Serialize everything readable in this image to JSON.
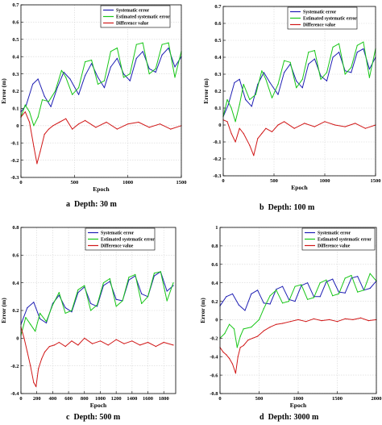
{
  "chart_data": [
    {
      "type": "line",
      "caption_letter": "a",
      "caption_text": "Depth: 30 m",
      "xlabel": "Epoch",
      "ylabel": "Error (m)",
      "xlim": [
        0,
        1500
      ],
      "ylim": [
        -0.3,
        0.7
      ],
      "xticks": [
        0,
        500,
        1000,
        1500
      ],
      "yticks": [
        -0.3,
        -0.2,
        -0.1,
        0,
        0.1,
        0.2,
        0.3,
        0.4,
        0.5,
        0.6,
        0.7
      ],
      "grid": true,
      "legend_position": "top-center",
      "series": [
        {
          "name": "Systematic error",
          "color": "#1f1fb4",
          "x": [
            0,
            50,
            110,
            160,
            220,
            280,
            340,
            400,
            460,
            540,
            600,
            660,
            720,
            780,
            840,
            900,
            960,
            1020,
            1080,
            1140,
            1200,
            1260,
            1320,
            1380,
            1440,
            1500
          ],
          "values": [
            0.08,
            0.12,
            0.24,
            0.27,
            0.17,
            0.11,
            0.22,
            0.31,
            0.27,
            0.18,
            0.29,
            0.36,
            0.28,
            0.22,
            0.34,
            0.39,
            0.3,
            0.26,
            0.39,
            0.43,
            0.33,
            0.31,
            0.41,
            0.45,
            0.34,
            0.4
          ]
        },
        {
          "name": "Estimated systematic error",
          "color": "#18c618",
          "x": [
            0,
            40,
            80,
            120,
            160,
            200,
            260,
            320,
            380,
            420,
            480,
            540,
            600,
            660,
            720,
            780,
            840,
            900,
            960,
            1020,
            1080,
            1140,
            1200,
            1260,
            1320,
            1380,
            1440,
            1500
          ],
          "values": [
            0.05,
            0.12,
            0.08,
            0.0,
            0.05,
            0.15,
            0.14,
            0.2,
            0.32,
            0.28,
            0.18,
            0.22,
            0.37,
            0.38,
            0.24,
            0.26,
            0.43,
            0.45,
            0.28,
            0.3,
            0.47,
            0.48,
            0.3,
            0.33,
            0.47,
            0.48,
            0.28,
            0.43
          ]
        },
        {
          "name": "Difference value",
          "color": "#d11818",
          "x": [
            0,
            40,
            80,
            120,
            150,
            180,
            220,
            260,
            300,
            360,
            420,
            480,
            540,
            600,
            700,
            800,
            900,
            1000,
            1100,
            1200,
            1300,
            1400,
            1500
          ],
          "values": [
            0.05,
            0.08,
            0.02,
            -0.12,
            -0.22,
            -0.15,
            -0.05,
            -0.02,
            0.0,
            0.02,
            0.04,
            -0.02,
            0.01,
            0.03,
            -0.01,
            0.02,
            -0.02,
            0.01,
            0.02,
            -0.01,
            0.01,
            -0.02,
            0.0
          ]
        }
      ]
    },
    {
      "type": "line",
      "caption_letter": "b",
      "caption_text": "Depth: 100 m",
      "xlabel": "Epoch",
      "ylabel": "Error (m)",
      "xlim": [
        0,
        1500
      ],
      "ylim": [
        -0.3,
        0.7
      ],
      "xticks": [
        0,
        500,
        1000,
        1500
      ],
      "yticks": [
        -0.3,
        -0.2,
        -0.1,
        0,
        0.1,
        0.2,
        0.3,
        0.4,
        0.5,
        0.6,
        0.7
      ],
      "grid": true,
      "legend_position": "top-center",
      "series": [
        {
          "name": "Systematic error",
          "color": "#1f1fb4",
          "x": [
            0,
            50,
            110,
            160,
            220,
            280,
            340,
            400,
            460,
            540,
            600,
            660,
            720,
            780,
            840,
            900,
            960,
            1020,
            1080,
            1140,
            1200,
            1260,
            1320,
            1380,
            1440,
            1500
          ],
          "values": [
            0.05,
            0.12,
            0.25,
            0.27,
            0.15,
            0.11,
            0.24,
            0.31,
            0.25,
            0.18,
            0.31,
            0.36,
            0.26,
            0.22,
            0.36,
            0.39,
            0.29,
            0.26,
            0.4,
            0.43,
            0.32,
            0.31,
            0.43,
            0.45,
            0.33,
            0.4
          ]
        },
        {
          "name": "Estimated systematic error",
          "color": "#18c618",
          "x": [
            0,
            40,
            80,
            120,
            160,
            200,
            260,
            320,
            380,
            420,
            480,
            540,
            600,
            660,
            720,
            780,
            840,
            900,
            960,
            1020,
            1080,
            1140,
            1200,
            1260,
            1320,
            1380,
            1440,
            1500
          ],
          "values": [
            0.05,
            0.15,
            0.1,
            0.02,
            0.12,
            0.24,
            0.15,
            0.18,
            0.32,
            0.27,
            0.16,
            0.24,
            0.38,
            0.37,
            0.22,
            0.27,
            0.43,
            0.44,
            0.27,
            0.31,
            0.46,
            0.48,
            0.3,
            0.34,
            0.47,
            0.49,
            0.28,
            0.45
          ]
        },
        {
          "name": "Difference value",
          "color": "#d11818",
          "x": [
            0,
            40,
            80,
            120,
            160,
            200,
            260,
            300,
            340,
            380,
            420,
            480,
            540,
            600,
            700,
            800,
            900,
            1000,
            1100,
            1200,
            1300,
            1400,
            1500
          ],
          "values": [
            0.03,
            0.02,
            -0.05,
            -0.1,
            -0.02,
            -0.05,
            -0.12,
            -0.18,
            -0.08,
            -0.05,
            -0.02,
            -0.04,
            0.0,
            0.02,
            -0.02,
            0.01,
            -0.01,
            0.02,
            0.0,
            -0.01,
            0.01,
            -0.02,
            0.0
          ]
        }
      ]
    },
    {
      "type": "line",
      "caption_letter": "c",
      "caption_text": "Depth: 500 m",
      "xlabel": "Epoch",
      "ylabel": "Error (m)",
      "xlim": [
        0,
        1950
      ],
      "ylim": [
        -0.4,
        0.8
      ],
      "xticks": [
        0,
        200,
        400,
        600,
        800,
        1000,
        1200,
        1400,
        1600,
        1800
      ],
      "yticks": [
        -0.4,
        -0.2,
        0,
        0.2,
        0.4,
        0.6,
        0.8
      ],
      "grid": true,
      "legend_position": "top-center",
      "series": [
        {
          "name": "Systematic error",
          "color": "#1f1fb4",
          "x": [
            0,
            80,
            160,
            240,
            320,
            400,
            480,
            560,
            640,
            720,
            800,
            880,
            960,
            1040,
            1120,
            1200,
            1280,
            1360,
            1440,
            1520,
            1600,
            1680,
            1760,
            1840,
            1920
          ],
          "values": [
            0.1,
            0.22,
            0.26,
            0.14,
            0.11,
            0.25,
            0.31,
            0.22,
            0.19,
            0.33,
            0.37,
            0.25,
            0.23,
            0.38,
            0.41,
            0.28,
            0.27,
            0.42,
            0.45,
            0.32,
            0.3,
            0.45,
            0.48,
            0.34,
            0.38
          ]
        },
        {
          "name": "Estimated systematic error",
          "color": "#18c618",
          "x": [
            0,
            60,
            120,
            180,
            240,
            320,
            400,
            480,
            560,
            640,
            720,
            800,
            880,
            960,
            1040,
            1120,
            1200,
            1280,
            1360,
            1440,
            1520,
            1600,
            1680,
            1760,
            1840,
            1920
          ],
          "values": [
            0.02,
            0.15,
            0.1,
            0.05,
            0.18,
            0.12,
            0.24,
            0.33,
            0.18,
            0.2,
            0.35,
            0.38,
            0.2,
            0.24,
            0.4,
            0.43,
            0.23,
            0.27,
            0.44,
            0.46,
            0.25,
            0.3,
            0.47,
            0.48,
            0.27,
            0.4
          ]
        },
        {
          "name": "Difference value",
          "color": "#d11818",
          "x": [
            0,
            40,
            80,
            120,
            160,
            190,
            220,
            260,
            300,
            360,
            420,
            480,
            560,
            640,
            720,
            800,
            900,
            1000,
            1100,
            1200,
            1300,
            1400,
            1500,
            1600,
            1700,
            1800,
            1920
          ],
          "values": [
            0.08,
            0.0,
            -0.1,
            -0.2,
            -0.32,
            -0.35,
            -0.22,
            -0.15,
            -0.1,
            -0.06,
            -0.05,
            -0.03,
            -0.06,
            -0.02,
            -0.05,
            0.0,
            -0.04,
            -0.02,
            -0.05,
            -0.01,
            -0.04,
            -0.02,
            -0.05,
            -0.03,
            -0.06,
            -0.03,
            -0.05
          ]
        }
      ]
    },
    {
      "type": "line",
      "caption_letter": "d",
      "caption_text": "Depth: 3000 m",
      "xlabel": "Epoch",
      "ylabel": "Error (m)",
      "xlim": [
        0,
        2000
      ],
      "ylim": [
        -0.8,
        1.0
      ],
      "xticks": [
        0,
        500,
        1000,
        1500,
        2000
      ],
      "yticks": [
        -0.8,
        -0.6,
        -0.4,
        -0.2,
        0,
        0.2,
        0.4,
        0.6,
        0.8,
        1
      ],
      "grid": true,
      "legend_position": "top-right",
      "series": [
        {
          "name": "Systematic error",
          "color": "#1f1fb4",
          "x": [
            0,
            80,
            160,
            240,
            320,
            400,
            480,
            560,
            640,
            720,
            800,
            880,
            960,
            1040,
            1120,
            1200,
            1280,
            1360,
            1440,
            1520,
            1600,
            1680,
            1760,
            1840,
            1920,
            2000
          ],
          "values": [
            0.15,
            0.25,
            0.28,
            0.16,
            0.1,
            0.28,
            0.32,
            0.18,
            0.17,
            0.33,
            0.36,
            0.22,
            0.2,
            0.37,
            0.4,
            0.25,
            0.25,
            0.41,
            0.44,
            0.3,
            0.29,
            0.45,
            0.47,
            0.32,
            0.34,
            0.42
          ]
        },
        {
          "name": "Estimated systematic error",
          "color": "#18c618",
          "x": [
            0,
            60,
            120,
            180,
            220,
            260,
            300,
            400,
            500,
            560,
            640,
            720,
            800,
            880,
            960,
            1040,
            1120,
            1200,
            1280,
            1360,
            1440,
            1520,
            1600,
            1680,
            1760,
            1840,
            1920,
            2000
          ],
          "values": [
            -0.2,
            -0.15,
            -0.05,
            -0.1,
            -0.3,
            -0.18,
            -0.1,
            -0.08,
            0.0,
            0.12,
            0.26,
            0.32,
            0.18,
            0.2,
            0.36,
            0.38,
            0.22,
            0.24,
            0.4,
            0.43,
            0.26,
            0.28,
            0.45,
            0.48,
            0.3,
            0.32,
            0.5,
            0.42
          ]
        },
        {
          "name": "Difference value",
          "color": "#d11818",
          "x": [
            0,
            40,
            80,
            120,
            160,
            200,
            230,
            260,
            300,
            360,
            420,
            480,
            560,
            640,
            720,
            800,
            900,
            1000,
            1100,
            1200,
            1300,
            1400,
            1500,
            1600,
            1700,
            1800,
            1900,
            2000
          ],
          "values": [
            -0.3,
            -0.35,
            -0.38,
            -0.42,
            -0.48,
            -0.58,
            -0.4,
            -0.3,
            -0.28,
            -0.22,
            -0.2,
            -0.18,
            -0.12,
            -0.08,
            -0.05,
            -0.04,
            -0.02,
            0.0,
            -0.02,
            0.01,
            -0.01,
            0.0,
            -0.02,
            0.01,
            0.0,
            0.02,
            -0.01,
            0.0
          ]
        }
      ]
    }
  ]
}
